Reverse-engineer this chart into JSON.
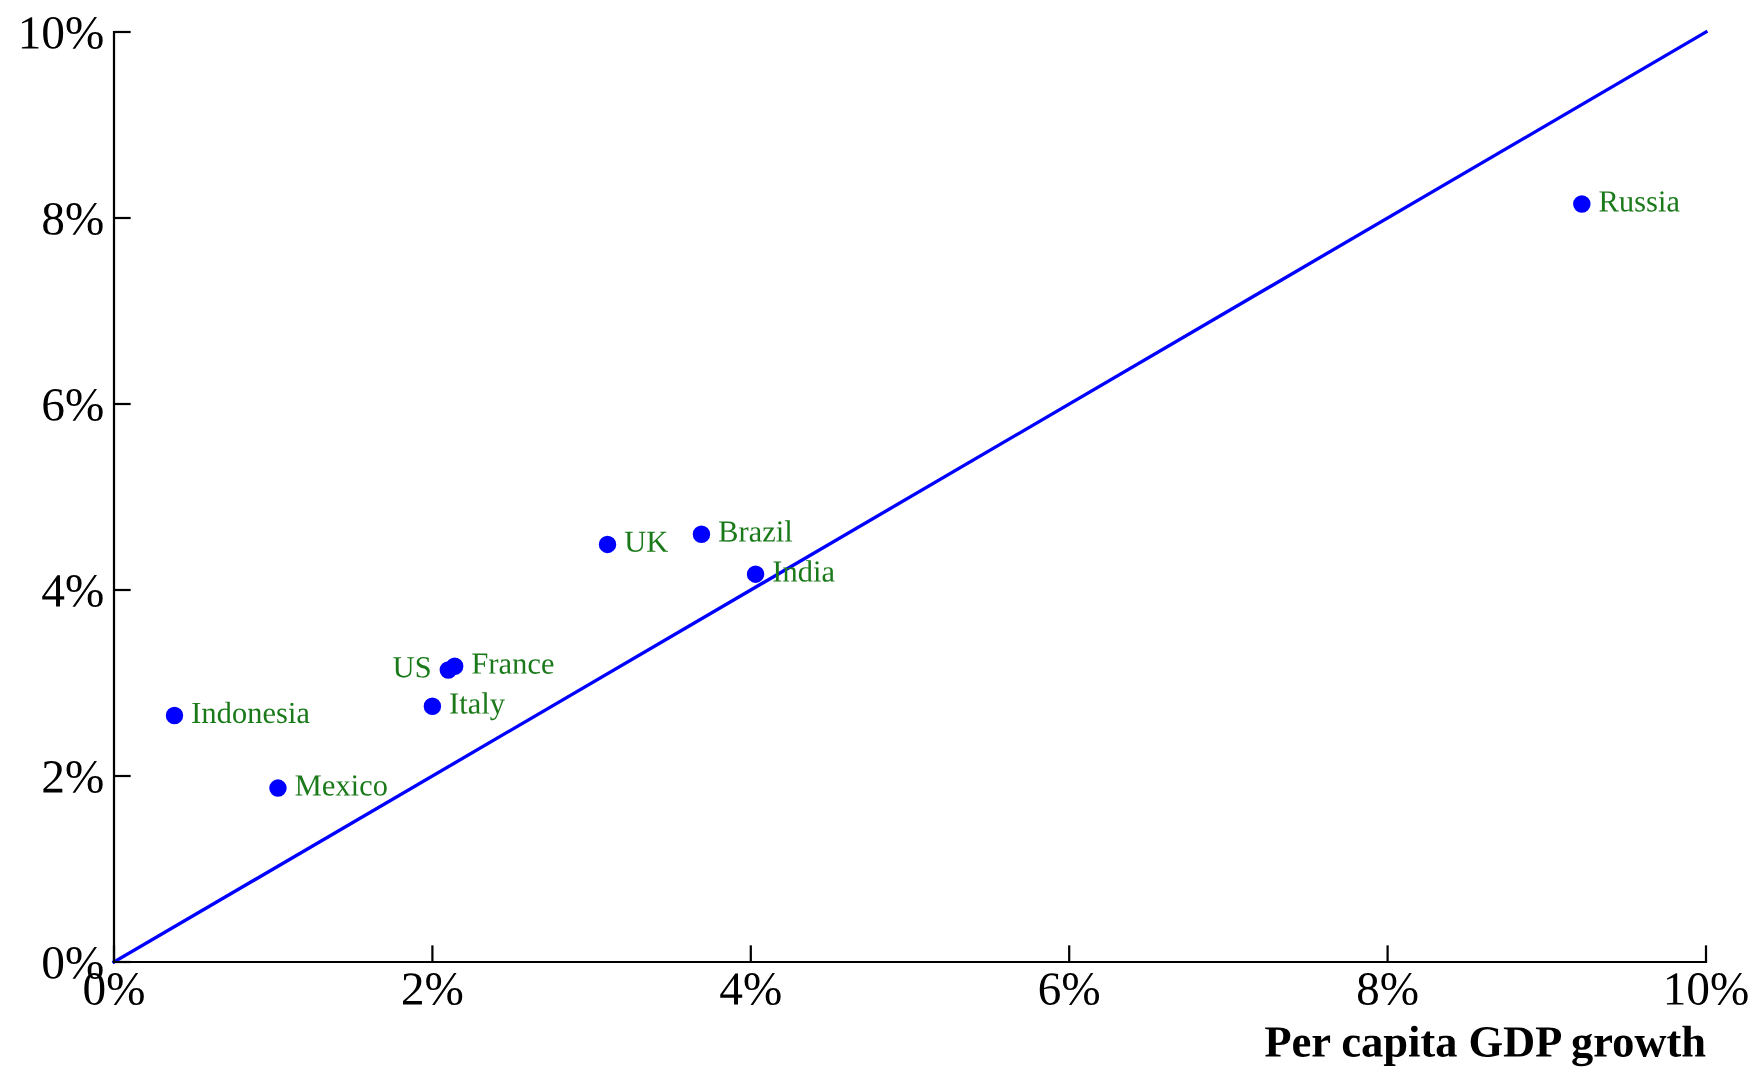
{
  "chart_data": {
    "type": "scatter",
    "xlabel": "Per capita GDP growth",
    "series": [
      {
        "type": "scatter",
        "color": "#0000ff",
        "marker": "circle",
        "x": [
          9.22,
          3.1,
          3.69,
          4.03,
          2.1,
          2.14,
          2.0,
          0.38,
          1.03
        ],
        "values": [
          8.15,
          4.49,
          4.6,
          4.17,
          3.14,
          3.18,
          2.75,
          2.65,
          1.87
        ]
      },
      {
        "type": "line",
        "color": "#0000ff",
        "marker": "none",
        "x": [
          0,
          10
        ],
        "values": [
          0,
          10
        ]
      }
    ],
    "annotations": [
      {
        "text": "Russia",
        "x": 9.22,
        "y": 8.15
      },
      {
        "text": "UK",
        "x": 3.1,
        "y": 4.49
      },
      {
        "text": "Brazil",
        "x": 3.69,
        "y": 4.6
      },
      {
        "text": "India",
        "x": 4.03,
        "y": 4.17
      },
      {
        "text": "US",
        "x": 2.1,
        "y": 3.14
      },
      {
        "text": "France",
        "x": 2.14,
        "y": 3.18
      },
      {
        "text": "Italy",
        "x": 2.0,
        "y": 2.75
      },
      {
        "text": "Indonesia",
        "x": 0.38,
        "y": 2.65
      },
      {
        "text": "Mexico",
        "x": 1.03,
        "y": 1.87
      }
    ],
    "xlim": [
      0,
      10
    ],
    "ylim": [
      0,
      10
    ],
    "xticks": [
      {
        "value": 0,
        "label": "0%"
      },
      {
        "value": 2,
        "label": "2%"
      },
      {
        "value": 4,
        "label": "4%"
      },
      {
        "value": 6,
        "label": "6%"
      },
      {
        "value": 8,
        "label": "8%"
      },
      {
        "value": 10,
        "label": "10%"
      }
    ],
    "yticks": [
      {
        "value": 0,
        "label": "0%"
      },
      {
        "value": 2,
        "label": "2%"
      },
      {
        "value": 4,
        "label": "4%"
      },
      {
        "value": 6,
        "label": "6%"
      },
      {
        "value": 8,
        "label": "8%"
      },
      {
        "value": 10,
        "label": "10%"
      }
    ],
    "grid": false,
    "legend": false
  }
}
